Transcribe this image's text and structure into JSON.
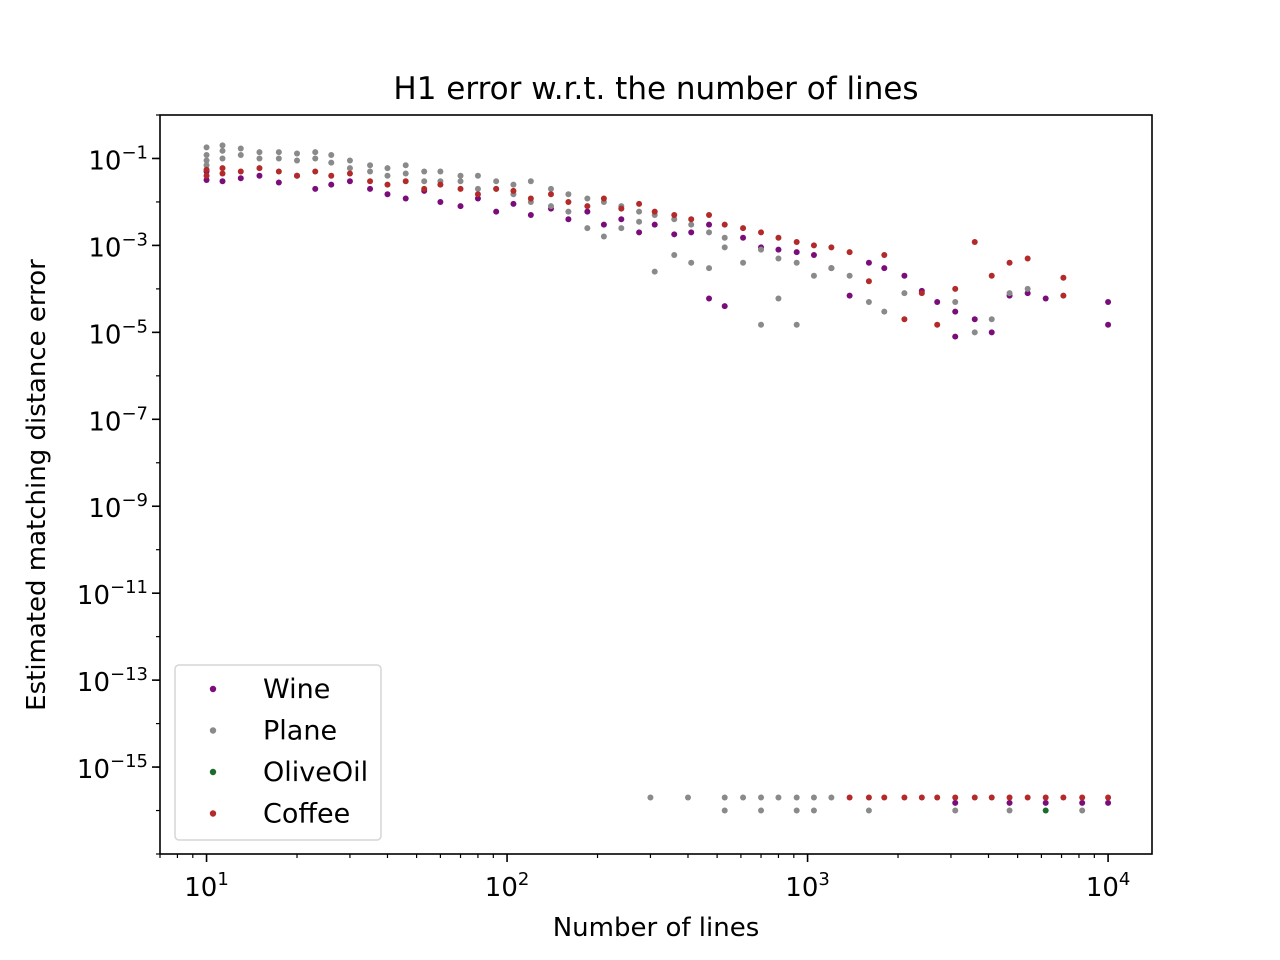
{
  "chart_data": {
    "type": "scatter",
    "title": "H1 error w.r.t. the number of lines",
    "xlabel": "Number of lines",
    "ylabel": "Estimated matching distance error",
    "xscale": "log",
    "yscale": "log",
    "xlim": [
      7,
      14000
    ],
    "ylim": [
      1e-17,
      1
    ],
    "x_ticks": [
      {
        "value": 10,
        "base": "10",
        "exp": "1"
      },
      {
        "value": 100,
        "base": "10",
        "exp": "2"
      },
      {
        "value": 1000,
        "base": "10",
        "exp": "3"
      },
      {
        "value": 10000,
        "base": "10",
        "exp": "4"
      }
    ],
    "y_ticks": [
      {
        "value": 0.1,
        "base": "10",
        "exp": "−1"
      },
      {
        "value": 0.001,
        "base": "10",
        "exp": "−3"
      },
      {
        "value": 1e-05,
        "base": "10",
        "exp": "−5"
      },
      {
        "value": 1e-07,
        "base": "10",
        "exp": "−7"
      },
      {
        "value": 1e-09,
        "base": "10",
        "exp": "−9"
      },
      {
        "value": 1e-11,
        "base": "10",
        "exp": "−11"
      },
      {
        "value": 1e-13,
        "base": "10",
        "exp": "−13"
      },
      {
        "value": 1e-15,
        "base": "10",
        "exp": "−15"
      }
    ],
    "grid": false,
    "legend_position": "bottom-left",
    "x_positions": [
      10,
      11.3,
      13,
      15,
      17.4,
      20,
      23,
      26,
      30,
      35,
      40,
      46,
      53,
      60,
      70,
      80,
      92,
      105,
      120,
      140,
      160,
      185,
      210,
      240,
      275,
      310,
      360,
      410,
      470,
      530,
      610,
      700,
      800,
      920,
      1050,
      1200,
      1380,
      1600,
      1800,
      2100,
      2400,
      2700,
      3100,
      3600,
      4100,
      4700,
      5400,
      6200,
      7100,
      8200,
      10000
    ],
    "series": [
      {
        "name": "Wine",
        "color": "#7b0d7b",
        "points": [
          [
            10,
            0.032
          ],
          [
            10,
            0.05
          ],
          [
            11.3,
            0.03
          ],
          [
            13,
            0.035
          ],
          [
            15,
            0.04
          ],
          [
            17.4,
            0.028
          ],
          [
            20,
            0.04
          ],
          [
            23,
            0.02
          ],
          [
            26,
            0.025
          ],
          [
            30,
            0.03
          ],
          [
            35,
            0.02
          ],
          [
            40,
            0.015
          ],
          [
            46,
            0.012
          ],
          [
            53,
            0.018
          ],
          [
            60,
            0.01
          ],
          [
            70,
            0.008
          ],
          [
            80,
            0.012
          ],
          [
            92,
            0.006
          ],
          [
            105,
            0.009
          ],
          [
            120,
            0.005
          ],
          [
            140,
            0.007
          ],
          [
            160,
            0.004
          ],
          [
            185,
            0.006
          ],
          [
            210,
            0.003
          ],
          [
            240,
            0.004
          ],
          [
            275,
            0.002
          ],
          [
            310,
            0.003
          ],
          [
            360,
            0.0018
          ],
          [
            410,
            0.002
          ],
          [
            470,
            6e-05
          ],
          [
            470,
            0.003
          ],
          [
            530,
            4e-05
          ],
          [
            610,
            0.0015
          ],
          [
            700,
            0.0009
          ],
          [
            800,
            0.0008
          ],
          [
            920,
            0.0007
          ],
          [
            1050,
            0.0006
          ],
          [
            1200,
            0.0003
          ],
          [
            1380,
            7e-05
          ],
          [
            1600,
            0.0004
          ],
          [
            1800,
            0.0003
          ],
          [
            2100,
            0.0002
          ],
          [
            2400,
            9e-05
          ],
          [
            2700,
            5e-05
          ],
          [
            3100,
            8e-06
          ],
          [
            3100,
            3e-05
          ],
          [
            3600,
            2e-05
          ],
          [
            4100,
            1e-05
          ],
          [
            4700,
            7e-05
          ],
          [
            5400,
            8e-05
          ],
          [
            6200,
            6e-05
          ],
          [
            10000,
            5e-05
          ],
          [
            10000,
            1.5e-05
          ],
          [
            3100,
            1.5e-16
          ],
          [
            4700,
            1.5e-16
          ],
          [
            6200,
            1.5e-16
          ],
          [
            8200,
            1.5e-16
          ],
          [
            10000,
            1.5e-16
          ]
        ]
      },
      {
        "name": "Plane",
        "color": "#8a8a8a",
        "points": [
          [
            10,
            0.18
          ],
          [
            10,
            0.12
          ],
          [
            10,
            0.09
          ],
          [
            10,
            0.07
          ],
          [
            11.3,
            0.2
          ],
          [
            11.3,
            0.15
          ],
          [
            11.3,
            0.1
          ],
          [
            13,
            0.17
          ],
          [
            13,
            0.12
          ],
          [
            15,
            0.14
          ],
          [
            15,
            0.1
          ],
          [
            17.4,
            0.14
          ],
          [
            17.4,
            0.1
          ],
          [
            20,
            0.13
          ],
          [
            20,
            0.09
          ],
          [
            23,
            0.14
          ],
          [
            23,
            0.1
          ],
          [
            26,
            0.12
          ],
          [
            26,
            0.08
          ],
          [
            30,
            0.09
          ],
          [
            30,
            0.06
          ],
          [
            35,
            0.07
          ],
          [
            35,
            0.05
          ],
          [
            40,
            0.06
          ],
          [
            40,
            0.04
          ],
          [
            46,
            0.07
          ],
          [
            46,
            0.045
          ],
          [
            53,
            0.05
          ],
          [
            53,
            0.03
          ],
          [
            60,
            0.05
          ],
          [
            60,
            0.03
          ],
          [
            70,
            0.04
          ],
          [
            70,
            0.03
          ],
          [
            80,
            0.04
          ],
          [
            80,
            0.02
          ],
          [
            92,
            0.03
          ],
          [
            92,
            0.02
          ],
          [
            105,
            0.025
          ],
          [
            105,
            0.015
          ],
          [
            120,
            0.03
          ],
          [
            120,
            0.01
          ],
          [
            140,
            0.02
          ],
          [
            140,
            0.008
          ],
          [
            160,
            0.015
          ],
          [
            160,
            0.006
          ],
          [
            185,
            0.012
          ],
          [
            185,
            0.0025
          ],
          [
            210,
            0.01
          ],
          [
            210,
            0.0016
          ],
          [
            240,
            0.008
          ],
          [
            240,
            0.0025
          ],
          [
            275,
            0.006
          ],
          [
            275,
            0.0035
          ],
          [
            310,
            0.005
          ],
          [
            310,
            0.00025
          ],
          [
            360,
            0.004
          ],
          [
            360,
            0.0006
          ],
          [
            410,
            0.003
          ],
          [
            410,
            0.0004
          ],
          [
            470,
            0.002
          ],
          [
            470,
            0.0003
          ],
          [
            530,
            0.0015
          ],
          [
            530,
            0.0009
          ],
          [
            610,
            0.0004
          ],
          [
            700,
            0.0008
          ],
          [
            700,
            1.5e-05
          ],
          [
            800,
            0.0005
          ],
          [
            800,
            6e-05
          ],
          [
            920,
            0.0004
          ],
          [
            920,
            1.5e-05
          ],
          [
            1050,
            0.0002
          ],
          [
            1200,
            0.0003
          ],
          [
            1380,
            0.0002
          ],
          [
            1600,
            5e-05
          ],
          [
            1800,
            3e-05
          ],
          [
            2100,
            8e-05
          ],
          [
            3100,
            5e-05
          ],
          [
            3600,
            1e-05
          ],
          [
            4100,
            2e-05
          ],
          [
            4700,
            8e-05
          ],
          [
            5400,
            0.0001
          ],
          [
            300,
            2e-16
          ],
          [
            400,
            2e-16
          ],
          [
            530,
            2e-16
          ],
          [
            530,
            1e-16
          ],
          [
            610,
            2e-16
          ],
          [
            700,
            2e-16
          ],
          [
            700,
            1e-16
          ],
          [
            800,
            2e-16
          ],
          [
            920,
            2e-16
          ],
          [
            920,
            1e-16
          ],
          [
            1050,
            2e-16
          ],
          [
            1050,
            1e-16
          ],
          [
            1200,
            2e-16
          ],
          [
            1600,
            1e-16
          ],
          [
            3100,
            1e-16
          ],
          [
            4700,
            1e-16
          ],
          [
            8200,
            1e-16
          ]
        ]
      },
      {
        "name": "OliveOil",
        "color": "#1a6b2e",
        "points": [
          [
            6200,
            1e-16
          ]
        ]
      },
      {
        "name": "Coffee",
        "color": "#b22a2a",
        "points": [
          [
            10,
            0.04
          ],
          [
            10,
            0.055
          ],
          [
            11.3,
            0.045
          ],
          [
            11.3,
            0.06
          ],
          [
            13,
            0.05
          ],
          [
            15,
            0.06
          ],
          [
            17.4,
            0.05
          ],
          [
            20,
            0.04
          ],
          [
            23,
            0.05
          ],
          [
            26,
            0.04
          ],
          [
            30,
            0.045
          ],
          [
            35,
            0.03
          ],
          [
            40,
            0.025
          ],
          [
            46,
            0.03
          ],
          [
            53,
            0.02
          ],
          [
            60,
            0.025
          ],
          [
            70,
            0.02
          ],
          [
            80,
            0.015
          ],
          [
            92,
            0.02
          ],
          [
            105,
            0.018
          ],
          [
            120,
            0.012
          ],
          [
            140,
            0.015
          ],
          [
            160,
            0.01
          ],
          [
            185,
            0.008
          ],
          [
            210,
            0.012
          ],
          [
            240,
            0.007
          ],
          [
            275,
            0.009
          ],
          [
            310,
            0.006
          ],
          [
            360,
            0.005
          ],
          [
            410,
            0.004
          ],
          [
            470,
            0.005
          ],
          [
            530,
            0.003
          ],
          [
            610,
            0.0025
          ],
          [
            700,
            0.002
          ],
          [
            800,
            0.0015
          ],
          [
            920,
            0.0012
          ],
          [
            1050,
            0.001
          ],
          [
            1200,
            0.0009
          ],
          [
            1380,
            0.0007
          ],
          [
            1600,
            0.00015
          ],
          [
            1800,
            0.0006
          ],
          [
            2100,
            2e-05
          ],
          [
            2400,
            8e-05
          ],
          [
            2700,
            1.5e-05
          ],
          [
            3100,
            0.0001
          ],
          [
            3600,
            0.0012
          ],
          [
            4100,
            0.0002
          ],
          [
            4700,
            0.0004
          ],
          [
            5400,
            0.0005
          ],
          [
            7100,
            0.00018
          ],
          [
            7100,
            7e-05
          ],
          [
            1380,
            2e-16
          ],
          [
            1600,
            2e-16
          ],
          [
            1800,
            2e-16
          ],
          [
            2100,
            2e-16
          ],
          [
            2400,
            2e-16
          ],
          [
            2700,
            2e-16
          ],
          [
            3100,
            2e-16
          ],
          [
            3600,
            2e-16
          ],
          [
            4100,
            2e-16
          ],
          [
            4700,
            2e-16
          ],
          [
            5400,
            2e-16
          ],
          [
            6200,
            2e-16
          ],
          [
            7100,
            2e-16
          ],
          [
            8200,
            2e-16
          ],
          [
            10000,
            2e-16
          ]
        ]
      }
    ]
  }
}
